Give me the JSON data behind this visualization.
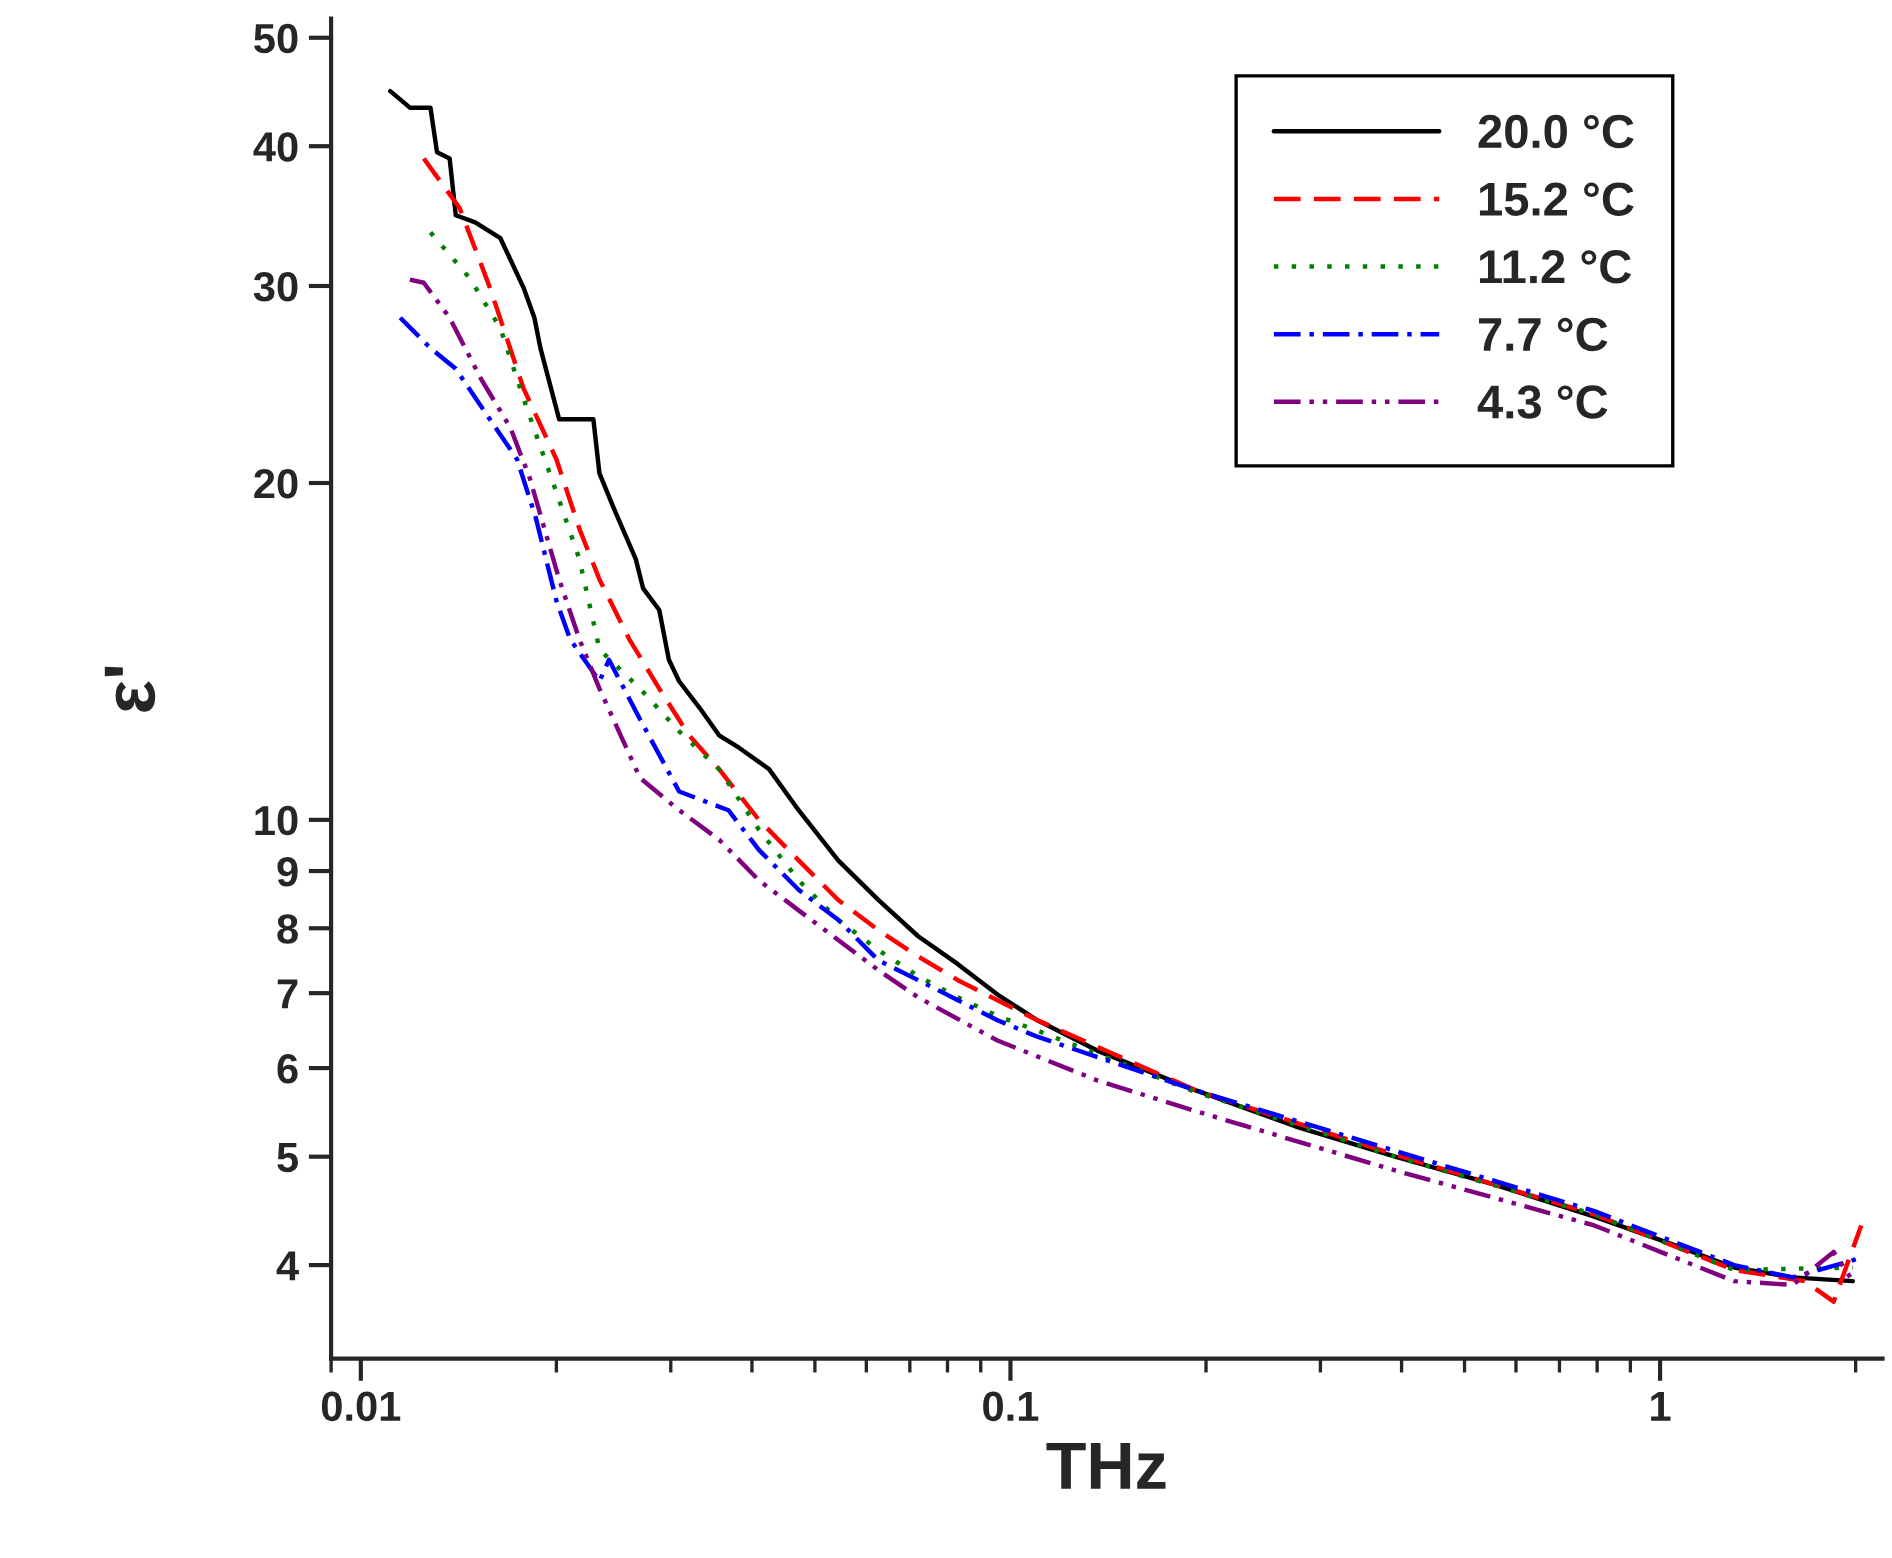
{
  "chart_data": {
    "type": "line",
    "xlabel": "THz",
    "ylabel": "ε'",
    "log": "xy",
    "grid": false,
    "legend": "top right",
    "marker": "none",
    "xlim": [
      0.009,
      2.2
    ],
    "xticks": [
      0.01,
      0.1,
      1
    ],
    "ylim": [
      3.3,
      52
    ],
    "yticks": [
      4,
      5,
      6,
      7,
      8,
      9,
      10,
      20,
      30,
      40,
      50
    ],
    "series": [
      {
        "name": "20.0 °C",
        "color": "#000000",
        "line_style": "solid",
        "x": [
          0.0111,
          0.0119,
          0.0128,
          0.0131,
          0.0137,
          0.014,
          0.015,
          0.0164,
          0.0178,
          0.0185,
          0.0189,
          0.0202,
          0.021,
          0.0228,
          0.0233,
          0.0245,
          0.0265,
          0.0272,
          0.0288,
          0.0298,
          0.0309,
          0.0332,
          0.0356,
          0.0382,
          0.0425,
          0.0472,
          0.0543,
          0.0626,
          0.0721,
          0.083,
          0.0955,
          0.11,
          0.136,
          0.193,
          0.275,
          0.391,
          0.556,
          0.792,
          1.05,
          1.3,
          1.6,
          1.98
        ],
        "values": [
          44.8,
          43.3,
          43.3,
          39.5,
          39.0,
          34.7,
          34.2,
          33.1,
          29.9,
          28.1,
          26.4,
          22.8,
          22.8,
          22.8,
          20.4,
          19.0,
          17.1,
          16.1,
          15.4,
          13.9,
          13.3,
          12.6,
          11.9,
          11.6,
          11.1,
          10.2,
          9.2,
          8.48,
          7.87,
          7.43,
          6.98,
          6.62,
          6.22,
          5.73,
          5.32,
          5.0,
          4.72,
          4.42,
          4.17,
          3.98,
          3.9,
          3.87
        ]
      },
      {
        "name": "15.2 °C",
        "color": "#ff0000",
        "line_style": "dashed",
        "x": [
          0.0125,
          0.0142,
          0.0158,
          0.0178,
          0.02,
          0.0217,
          0.0233,
          0.0259,
          0.0288,
          0.032,
          0.0356,
          0.041,
          0.0472,
          0.0543,
          0.0626,
          0.0721,
          0.083,
          0.0955,
          0.11,
          0.193,
          0.391,
          0.792,
          1.3,
          1.67,
          1.85,
          2.04
        ],
        "values": [
          39.0,
          35.2,
          29.9,
          24.3,
          21.0,
          18.2,
          16.4,
          14.5,
          13.1,
          11.9,
          11.1,
          10.0,
          9.2,
          8.48,
          7.97,
          7.55,
          7.19,
          6.9,
          6.62,
          5.73,
          5.02,
          4.44,
          3.96,
          3.87,
          3.71,
          4.34
        ]
      },
      {
        "name": "11.2 °C",
        "color": "#008000",
        "line_style": "dotted",
        "x": [
          0.0128,
          0.0147,
          0.0164,
          0.0178,
          0.0202,
          0.0217,
          0.0233,
          0.0269,
          0.0309,
          0.0356,
          0.041,
          0.0472,
          0.0543,
          0.0626,
          0.0721,
          0.083,
          0.0955,
          0.11,
          0.193,
          0.391,
          0.792,
          1.3,
          1.98
        ],
        "values": [
          33.5,
          30.5,
          27.5,
          23.8,
          19.3,
          17.1,
          14.2,
          13.1,
          12.0,
          11.1,
          9.8,
          8.83,
          8.14,
          7.65,
          7.25,
          6.94,
          6.68,
          6.48,
          5.71,
          5.0,
          4.44,
          3.96,
          3.98
        ]
      },
      {
        "name": "7.7 °C",
        "color": "#0000ff",
        "line_style": "dashdot",
        "x": [
          0.0115,
          0.0128,
          0.014,
          0.0158,
          0.0174,
          0.0186,
          0.02,
          0.021,
          0.0233,
          0.0241,
          0.0269,
          0.0309,
          0.0368,
          0.041,
          0.0472,
          0.0543,
          0.0626,
          0.0721,
          0.083,
          0.0955,
          0.11,
          0.193,
          0.391,
          0.792,
          1.3,
          1.6,
          2.04
        ],
        "values": [
          28.1,
          26.4,
          25.3,
          22.8,
          21.0,
          18.6,
          15.7,
          14.5,
          13.3,
          13.9,
          12.3,
          10.6,
          10.2,
          9.4,
          8.66,
          8.14,
          7.49,
          7.19,
          6.9,
          6.62,
          6.4,
          5.73,
          5.06,
          4.47,
          4.0,
          3.9,
          4.06
        ]
      },
      {
        "name": "4.3 °C",
        "color": "#800080",
        "line_style": "dashdotdot",
        "x": [
          0.0119,
          0.0125,
          0.0137,
          0.0153,
          0.017,
          0.0182,
          0.0202,
          0.0217,
          0.0233,
          0.0269,
          0.0309,
          0.0356,
          0.041,
          0.0472,
          0.0543,
          0.0626,
          0.0721,
          0.0955,
          0.136,
          0.193,
          0.391,
          0.792,
          1.3,
          1.6,
          1.85,
          1.98
        ],
        "values": [
          30.4,
          30.2,
          28.1,
          24.8,
          22.4,
          20.2,
          16.4,
          14.5,
          13.1,
          10.9,
          10.2,
          9.6,
          8.83,
          8.3,
          7.81,
          7.34,
          6.94,
          6.35,
          5.85,
          5.49,
          4.86,
          4.34,
          3.87,
          3.84,
          4.11,
          3.87
        ]
      }
    ]
  }
}
